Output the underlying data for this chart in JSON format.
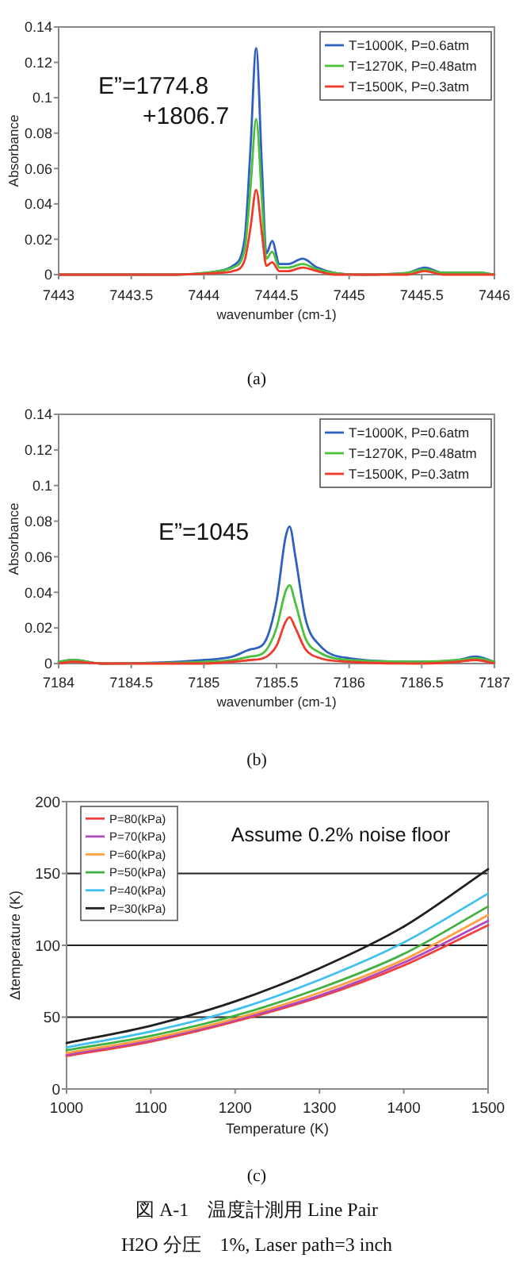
{
  "chart_data": [
    {
      "type": "line",
      "xlabel": "wavenumber (cm-1)",
      "ylabel": "Absorbance",
      "annotations": [
        "E”=1774.8",
        "+1806.7",
        "(a)"
      ],
      "x": [
        7443,
        7443.8,
        7444.1,
        7444.2,
        7444.28,
        7444.32,
        7444.36,
        7444.4,
        7444.43,
        7444.47,
        7444.52,
        7444.58,
        7444.68,
        7444.78,
        7444.9,
        7445.1,
        7445.4,
        7445.52,
        7445.65,
        7445.9,
        7446
      ],
      "series": [
        {
          "name": "T=1000K, P=0.6atm",
          "color": "#2e5fc1",
          "values": [
            0,
            0,
            0.002,
            0.005,
            0.02,
            0.07,
            0.128,
            0.06,
            0.012,
            0.019,
            0.006,
            0.006,
            0.009,
            0.004,
            0.001,
            0,
            0.001,
            0.004,
            0.001,
            0.001,
            0
          ]
        },
        {
          "name": "T=1270K, P=0.48atm",
          "color": "#4cbf3c",
          "values": [
            0,
            0,
            0.002,
            0.004,
            0.014,
            0.048,
            0.088,
            0.042,
            0.009,
            0.013,
            0.004,
            0.004,
            0.006,
            0.003,
            0.001,
            0,
            0.001,
            0.003,
            0.001,
            0.001,
            0
          ]
        },
        {
          "name": "T=1500K, P=0.3atm",
          "color": "#ef3b2c",
          "values": [
            0,
            0,
            0.001,
            0.002,
            0.008,
            0.026,
            0.048,
            0.023,
            0.005,
            0.007,
            0.002,
            0.002,
            0.004,
            0.002,
            0,
            0,
            0,
            0.002,
            0,
            0,
            0
          ]
        }
      ],
      "xlim": [
        7443,
        7446
      ],
      "ylim": [
        0,
        0.14
      ],
      "xticks": [
        7443,
        7443.5,
        7444,
        7444.5,
        7445,
        7445.5,
        7446
      ],
      "yticks": [
        0,
        0.02,
        0.04,
        0.06,
        0.08,
        0.1,
        0.12,
        0.14
      ],
      "legend": "top right"
    },
    {
      "type": "line",
      "xlabel": "wavenumber (cm-1)",
      "ylabel": "Absorbance",
      "annotations": [
        "E”=1045",
        "(b)"
      ],
      "x": [
        7184,
        7184.1,
        7184.3,
        7185,
        7185.2,
        7185.32,
        7185.41,
        7185.5,
        7185.56,
        7185.59,
        7185.63,
        7185.7,
        7185.8,
        7186,
        7186.5,
        7186.75,
        7186.87,
        7187
      ],
      "series": [
        {
          "name": "T=1000K, P=0.6atm",
          "color": "#2e5fc1",
          "values": [
            0.001,
            0.002,
            0,
            0.002,
            0.004,
            0.008,
            0.011,
            0.035,
            0.07,
            0.077,
            0.06,
            0.025,
            0.01,
            0.003,
            0.001,
            0.002,
            0.004,
            0.001
          ]
        },
        {
          "name": "T=1270K, P=0.48atm",
          "color": "#4cbf3c",
          "values": [
            0.001,
            0.002,
            0,
            0.001,
            0.002,
            0.004,
            0.006,
            0.02,
            0.04,
            0.044,
            0.034,
            0.014,
            0.006,
            0.002,
            0.001,
            0.002,
            0.003,
            0.001
          ]
        },
        {
          "name": "T=1500K, P=0.3atm",
          "color": "#ef3b2c",
          "values": [
            0,
            0.001,
            0,
            0,
            0.001,
            0.002,
            0.003,
            0.01,
            0.023,
            0.026,
            0.02,
            0.008,
            0.003,
            0.001,
            0,
            0.001,
            0.002,
            0
          ]
        }
      ],
      "xlim": [
        7184,
        7187
      ],
      "ylim": [
        0,
        0.14
      ],
      "xticks": [
        7184,
        7184.5,
        7185,
        7185.5,
        7186,
        7186.5,
        7187
      ],
      "yticks": [
        0,
        0.02,
        0.04,
        0.06,
        0.08,
        0.1,
        0.12,
        0.14
      ],
      "legend": "top right"
    },
    {
      "type": "line",
      "xlabel": "Temperature (K)",
      "ylabel": "Δtemperature (K)",
      "annotations": [
        "Assume 0.2% noise floor",
        "(c)",
        "図 A-1　温度計測用 Line Pair",
        "H2O 分圧　1%, Laser path=3 inch"
      ],
      "x": [
        1000,
        1100,
        1200,
        1300,
        1400,
        1500
      ],
      "series": [
        {
          "name": "P=80(kPa)",
          "color": "#f04040",
          "values": [
            23,
            33,
            47,
            64,
            86,
            114
          ]
        },
        {
          "name": "P=70(kPa)",
          "color": "#b048c0",
          "values": [
            24,
            34,
            48,
            65,
            88,
            117
          ]
        },
        {
          "name": "P=60(kPa)",
          "color": "#ffa040",
          "values": [
            25,
            35,
            49,
            67,
            90,
            121
          ]
        },
        {
          "name": "P=50(kPa)",
          "color": "#40b040",
          "values": [
            27,
            37,
            51,
            70,
            94,
            127
          ]
        },
        {
          "name": "P=40(kPa)",
          "color": "#40c0f0",
          "values": [
            29,
            40,
            55,
            76,
            102,
            136
          ]
        },
        {
          "name": "P=30(kPa)",
          "color": "#202020",
          "values": [
            32,
            44,
            61,
            84,
            113,
            153
          ]
        }
      ],
      "xlim": [
        1000,
        1500
      ],
      "ylim": [
        0,
        200
      ],
      "xticks": [
        1000,
        1100,
        1200,
        1300,
        1400,
        1500
      ],
      "yticks": [
        0,
        50,
        100,
        150,
        200
      ],
      "grid": "y",
      "legend": "top left"
    }
  ]
}
